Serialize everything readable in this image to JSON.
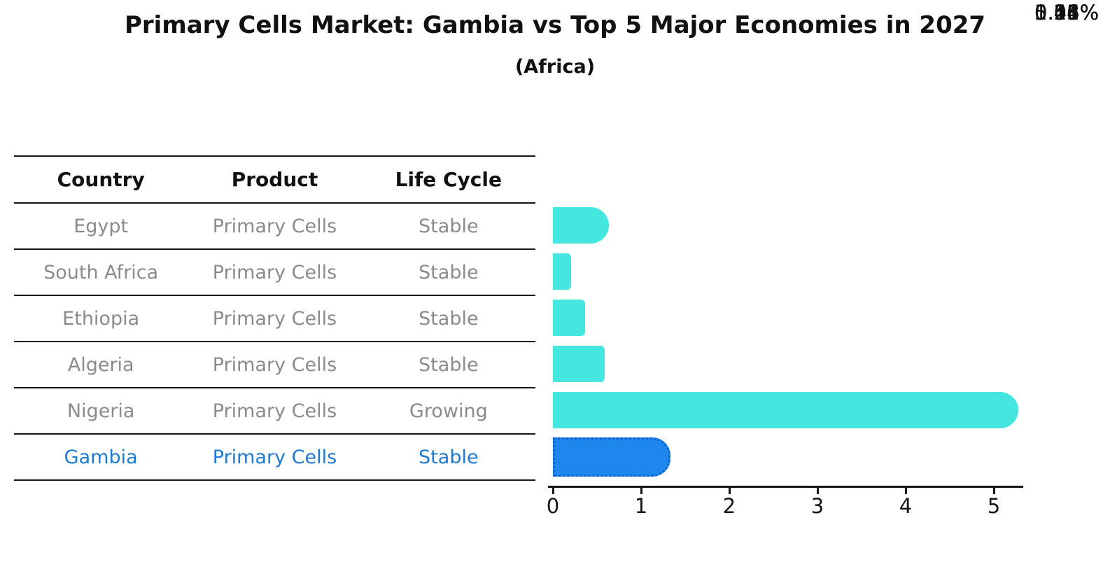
{
  "title": "Primary Cells Market: Gambia vs Top 5 Major Economies in 2027",
  "subtitle": "(Africa)",
  "table": {
    "headers": [
      "Country",
      "Product",
      "Life Cycle"
    ],
    "rows": [
      {
        "country": "Egypt",
        "product": "Primary Cells",
        "life_cycle": "Stable"
      },
      {
        "country": "South Africa",
        "product": "Primary Cells",
        "life_cycle": "Stable"
      },
      {
        "country": "Ethiopia",
        "product": "Primary Cells",
        "life_cycle": "Stable"
      },
      {
        "country": "Algeria",
        "product": "Primary Cells",
        "life_cycle": "Stable"
      },
      {
        "country": "Nigeria",
        "product": "Primary Cells",
        "life_cycle": "Growing"
      },
      {
        "country": "Gambia",
        "product": "Primary Cells",
        "life_cycle": "Stable"
      }
    ]
  },
  "chart_data": {
    "type": "bar",
    "orientation": "horizontal",
    "title": "Primary Cells Market: Gambia vs Top 5 Major Economies in 2027",
    "subtitle": "(Africa)",
    "categories": [
      "Egypt",
      "South Africa",
      "Ethiopia",
      "Algeria",
      "Nigeria",
      "Gambia"
    ],
    "values": [
      0.51,
      0.08,
      0.24,
      0.46,
      5.15,
      1.16
    ],
    "value_labels": [
      "0.51%",
      "0.08%",
      "0.24%",
      "0.46%",
      "5.15%",
      "1.16%"
    ],
    "x_ticks": [
      "0",
      "1",
      "2",
      "3",
      "4",
      "5"
    ],
    "xlim": [
      0,
      5.3
    ],
    "grid": false,
    "legend": false,
    "highlight_category": "Gambia"
  },
  "highlight_index": 5,
  "colors": {
    "bar_default": "#45E6E0",
    "bar_highlight": "#1E87EE",
    "highlight_border": "#1161C9",
    "highlight_text": "#1E7AD0",
    "row_text": "#8B8B8B",
    "header_text": "#111111",
    "axis": "#161616"
  }
}
